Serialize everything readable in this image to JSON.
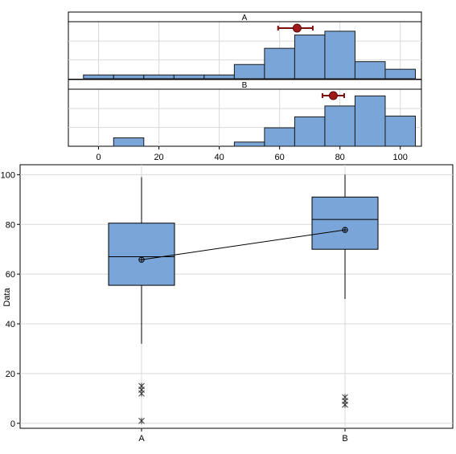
{
  "colors": {
    "bar_fill": "#7aa5d8",
    "box_fill": "#7aa5d8",
    "ci_color": "#a01818"
  },
  "chart_data": [
    {
      "type": "bar",
      "chart": "histogram",
      "panel": "A",
      "bin_edges": [
        -5,
        5,
        15,
        25,
        35,
        45,
        55,
        65,
        75,
        85,
        95,
        105
      ],
      "heights": [
        0.4,
        0.4,
        0.4,
        0.4,
        0.4,
        1.5,
        3.2,
        4.6,
        5,
        1.8,
        1
      ],
      "height_max": 6,
      "mean": 65.8,
      "ci": [
        59.5,
        71
      ]
    },
    {
      "type": "bar",
      "chart": "histogram",
      "panel": "B",
      "bin_edges": [
        -5,
        5,
        15,
        25,
        35,
        45,
        55,
        65,
        75,
        85,
        95,
        105
      ],
      "heights": [
        0,
        1,
        0,
        0,
        0,
        0.5,
        2.2,
        3.5,
        4.8,
        6,
        3.6
      ],
      "height_max": 6.8,
      "mean": 77.8,
      "ci": [
        74.2,
        81.4
      ],
      "x_ticks": [
        "0",
        "20",
        "40",
        "60",
        "80",
        "100"
      ],
      "x_tick_values": [
        0,
        20,
        40,
        60,
        80,
        100
      ],
      "xlim": [
        -10,
        107
      ]
    },
    {
      "type": "boxplot",
      "ylabel": "Data",
      "ylim": [
        -2,
        104
      ],
      "y_ticks": [
        "0",
        "20",
        "40",
        "60",
        "80",
        "100"
      ],
      "y_tick_values": [
        0,
        20,
        40,
        60,
        80,
        100
      ],
      "categories": [
        "A",
        "B"
      ],
      "boxes": [
        {
          "name": "A",
          "whisker_low": 32,
          "q1": 55.5,
          "median": 67,
          "q3": 80.5,
          "whisker_high": 99,
          "mean": 65.8,
          "outliers": [
            1,
            12,
            13.5,
            15
          ]
        },
        {
          "name": "B",
          "whisker_low": 50,
          "q1": 70,
          "median": 82,
          "q3": 91,
          "whisker_high": 100,
          "mean": 77.8,
          "outliers": [
            7.5,
            9,
            10.5
          ]
        }
      ]
    }
  ]
}
